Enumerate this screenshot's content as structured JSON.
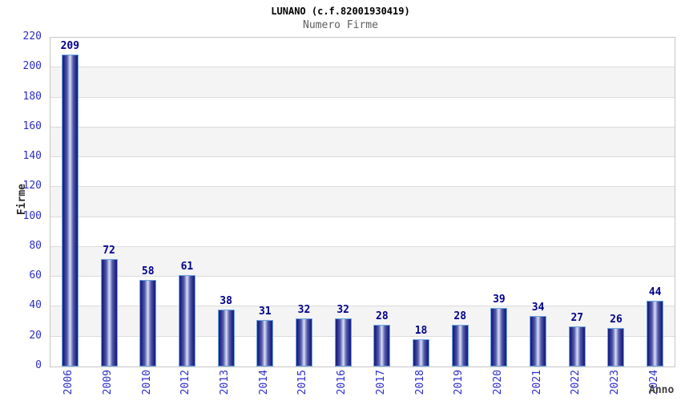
{
  "header": {
    "title": "LUNANO (c.f.82001930419)",
    "subtitle": "Numero Firme"
  },
  "chart_data": {
    "type": "bar",
    "title": "LUNANO (c.f.82001930419)",
    "subtitle": "Numero Firme",
    "categories": [
      "2006",
      "2009",
      "2010",
      "2012",
      "2013",
      "2014",
      "2015",
      "2016",
      "2017",
      "2018",
      "2019",
      "2020",
      "2021",
      "2022",
      "2023",
      "2024"
    ],
    "values": [
      209,
      72,
      58,
      61,
      38,
      31,
      32,
      32,
      28,
      18,
      28,
      39,
      34,
      27,
      26,
      44
    ],
    "xlabel": "Anno",
    "ylabel": "Firme",
    "ylim": [
      0,
      220
    ],
    "ytick_step": 20,
    "yticks": [
      0,
      20,
      40,
      60,
      80,
      100,
      120,
      140,
      160,
      180,
      200,
      220
    ],
    "grid": "horizontal-every-20",
    "banding": "alternating-white-gray-from-top",
    "legend": "none",
    "colors": {
      "tick_label": "#2d2dc7",
      "value_label": "#00008c",
      "bar_edge": "#6aa7e0",
      "bar_dark": "#1b1f7c",
      "bar_light": "#dde0f2",
      "band_gray": "#f4f4f4",
      "gridline": "#dbdbdb",
      "plot_border": "#c6c6c6",
      "title_color": "#000000",
      "subtitle_color": "#5e5e5e",
      "axis_title_color": "#3d3d3d"
    }
  }
}
